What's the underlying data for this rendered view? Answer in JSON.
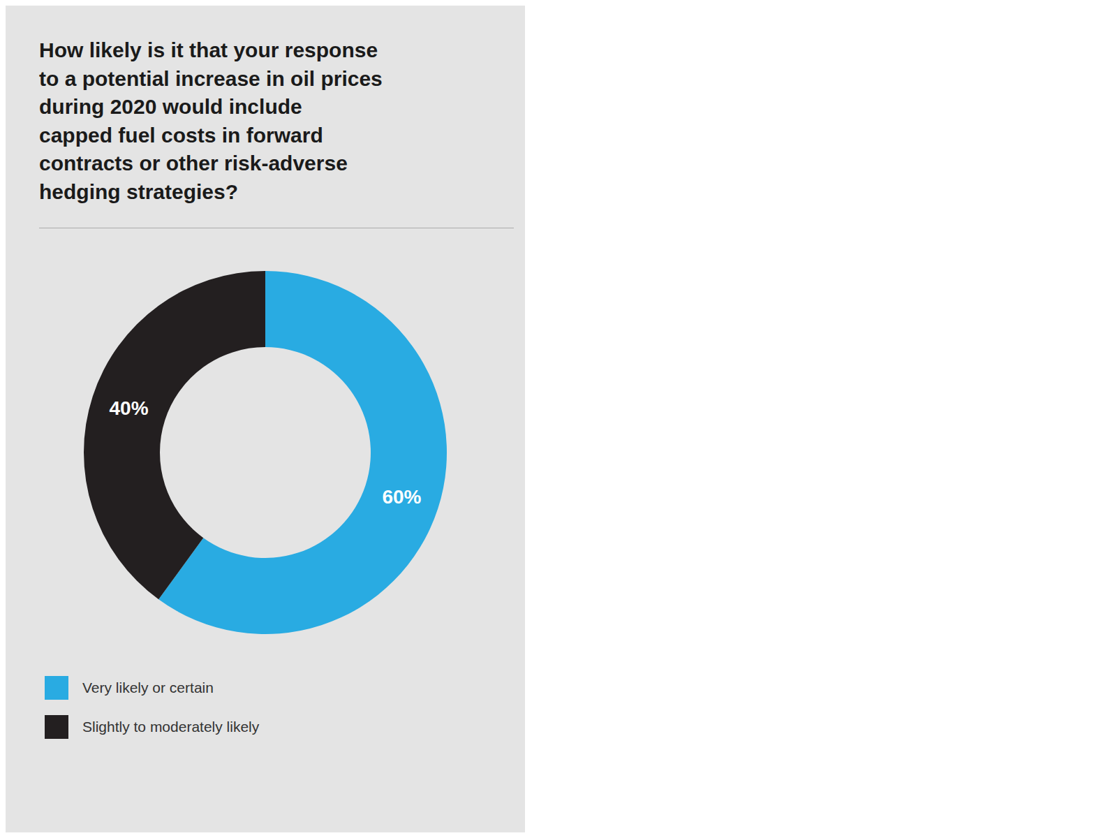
{
  "chart_data": {
    "type": "pie",
    "title": "How likely is it that your response\nto a potential increase in oil prices\nduring 2020 would include\ncapped fuel costs in forward\ncontracts or other risk-adverse\nhedging strategies?",
    "categories": [
      "Very likely or certain",
      "Slightly to moderately likely"
    ],
    "values": [
      60,
      40
    ],
    "value_labels": [
      "60%",
      "40%"
    ],
    "colors": [
      "#29ABE2",
      "#231F20"
    ],
    "data_labels": true,
    "legend": "lower left"
  }
}
